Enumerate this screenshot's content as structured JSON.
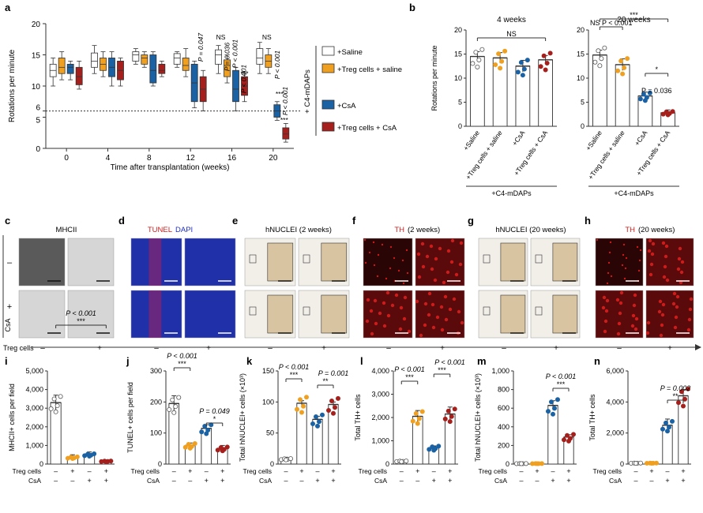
{
  "colors": {
    "saline": "#ffffff",
    "treg_saline": "#f0a020",
    "csa": "#1a62a3",
    "treg_csa": "#a5201c",
    "axis": "#333333"
  },
  "panel_letters": [
    "a",
    "b",
    "c",
    "d",
    "e",
    "f",
    "g",
    "h",
    "i",
    "j",
    "k",
    "l",
    "m",
    "n"
  ],
  "legend_a": {
    "items": [
      "+Saline",
      "+Treg cells + saline",
      "+CsA",
      "+Treg cells + CsA"
    ],
    "group_label": "+ C4-mDAPs"
  },
  "images_row": {
    "c": {
      "title": "MHCII"
    },
    "d": {
      "title_red": "TUNEL",
      "title_blue": "DAPI"
    },
    "e": {
      "title": "hNUCLEI (2 weeks)"
    },
    "f": {
      "title_red": "TH",
      "title_rest": "(2 weeks)"
    },
    "g": {
      "title": "hNUCLEI (20 weeks)"
    },
    "h": {
      "title_red": "TH",
      "title_rest": "(20 weeks)"
    },
    "row_minus": "–",
    "row_plus": "+",
    "row_label": "CsA",
    "col_label": "Treg cells",
    "col_minus": "–",
    "col_plus": "+"
  },
  "chart_data": [
    {
      "id": "a",
      "type": "box",
      "xlabel": "Time after transplantation (weeks)",
      "ylabel": "Rotations per minute",
      "ylim": [
        0,
        20
      ],
      "yticks": [
        0,
        5,
        6,
        10,
        15,
        20
      ],
      "categories": [
        "0",
        "4",
        "8",
        "12",
        "16",
        "20"
      ],
      "threshold": 6,
      "series": [
        {
          "color_key": "saline",
          "boxes": [
            [
              10,
              11.5,
              12.5,
              13.5,
              14.5
            ],
            [
              12,
              13,
              14,
              15.3,
              16.5
            ],
            [
              13.5,
              14,
              15,
              15.5,
              16
            ],
            [
              13,
              13.5,
              14.5,
              15.2,
              15.5
            ],
            [
              12,
              13.5,
              15,
              15.8,
              16.5
            ],
            [
              12,
              13.5,
              14.5,
              16,
              17
            ]
          ]
        },
        {
          "color_key": "treg_saline",
          "boxes": [
            [
              11,
              12,
              13,
              14.5,
              15.5
            ],
            [
              11.5,
              12.5,
              13.5,
              14.5,
              15.5
            ],
            [
              13,
              13.5,
              14.5,
              15,
              15.5
            ],
            [
              11.5,
              12.5,
              13.3,
              14.5,
              16
            ],
            [
              10.5,
              11.5,
              13.3,
              14.2,
              15
            ],
            [
              12,
              13,
              14,
              15,
              16
            ]
          ]
        },
        {
          "color_key": "csa",
          "boxes": [
            [
              11,
              12,
              13,
              13.5,
              14
            ],
            [
              10,
              11.5,
              13,
              14.5,
              15.5
            ],
            [
              10,
              10.5,
              12.5,
              15,
              15.5
            ],
            [
              6.5,
              7.5,
              10.5,
              13.5,
              14
            ],
            [
              6,
              7.5,
              9.5,
              12.5,
              13
            ],
            [
              4.5,
              5,
              6,
              7,
              7.5
            ]
          ]
        },
        {
          "color_key": "treg_csa",
          "boxes": [
            [
              9.5,
              10.2,
              11.5,
              13,
              14
            ],
            [
              10,
              11,
              12.5,
              14,
              14.5
            ],
            [
              11.5,
              12,
              12.5,
              13.5,
              14
            ],
            [
              6,
              7.5,
              9.5,
              11.5,
              12.5
            ],
            [
              7.5,
              8.5,
              10,
              11.5,
              12
            ],
            [
              1,
              1.5,
              2.3,
              3.3,
              4
            ]
          ]
        }
      ],
      "annotations": [
        {
          "cat": 3,
          "text": "P = 0.047"
        },
        {
          "cat": 4,
          "text": "NS"
        },
        {
          "cat": 4,
          "text": "P = 0.036"
        },
        {
          "cat": 4,
          "text": "P < 0.001"
        },
        {
          "cat": 4,
          "text": "P < 0.001"
        },
        {
          "cat": 4,
          "text": "***"
        },
        {
          "cat": 5,
          "text": "NS"
        },
        {
          "cat": 5,
          "text": "P < 0.001"
        },
        {
          "cat": 5,
          "text": "P < 0.001"
        },
        {
          "cat": 5,
          "text": "***"
        },
        {
          "cat": 5,
          "text": "***"
        }
      ]
    },
    {
      "id": "b1",
      "type": "bar",
      "title": "4 weeks",
      "ylabel": "Rotations per minute",
      "ylim": [
        0,
        20
      ],
      "yticks": [
        0,
        5,
        10,
        15,
        20
      ],
      "categories": [
        "+Saline",
        "+Treg cells + saline",
        "+CsA",
        "+Treg cells + CsA"
      ],
      "values": [
        14.5,
        14.2,
        12.5,
        13.8
      ],
      "errors": [
        1.0,
        1.1,
        1.2,
        0.9
      ],
      "group_label": "+C4-mDAPs",
      "brackets": [
        {
          "from": 0,
          "to": 3,
          "text": "NS"
        }
      ]
    },
    {
      "id": "b2",
      "type": "bar",
      "title": "20 weeks",
      "ylim": [
        0,
        20
      ],
      "yticks": [
        0,
        5,
        10,
        15,
        20
      ],
      "categories": [
        "+Saline",
        "+Treg cells + saline",
        "+CsA",
        "+Treg cells + CsA"
      ],
      "values": [
        14.8,
        12.8,
        6.3,
        2.8
      ],
      "errors": [
        1.0,
        1.2,
        0.8,
        0.6
      ],
      "group_label": "+C4-mDAPs",
      "brackets": [
        {
          "from": 0,
          "to": 3,
          "text": "***"
        },
        {
          "from": 0,
          "to": 1,
          "text": "NS   P < 0.001"
        },
        {
          "from": 2,
          "to": 3,
          "text": "*"
        },
        {
          "from": 2,
          "to": 3,
          "text": "P = 0.036"
        }
      ]
    },
    {
      "id": "i",
      "type": "bar",
      "ylabel": "MHCII+ cells per field",
      "ylim": [
        0,
        5000
      ],
      "yticks": [
        0,
        1000,
        2000,
        3000,
        4000,
        5000
      ],
      "yticklabels": [
        "0",
        "1,000",
        "2,000",
        "3,000",
        "4,000",
        "5,000"
      ],
      "treg": [
        "–",
        "+",
        "–",
        "+"
      ],
      "csa": [
        "–",
        "–",
        "+",
        "+"
      ],
      "values": [
        3300,
        350,
        500,
        150
      ],
      "errors": [
        400,
        150,
        150,
        50
      ],
      "brackets": [
        {
          "from": 0,
          "to": 3,
          "text": "***",
          "p": "P < 0.001"
        }
      ]
    },
    {
      "id": "j",
      "type": "bar",
      "ylabel": "TUNEL+ cells per field",
      "ylim": [
        0,
        300
      ],
      "yticks": [
        0,
        100,
        200,
        300
      ],
      "yticklabels": [
        "0",
        "100",
        "200",
        "300"
      ],
      "treg": [
        "–",
        "+",
        "–",
        "+"
      ],
      "csa": [
        "–",
        "–",
        "+",
        "+"
      ],
      "values": [
        195,
        60,
        115,
        50
      ],
      "errors": [
        25,
        8,
        12,
        10
      ],
      "brackets": [
        {
          "from": 0,
          "to": 1,
          "text": "***",
          "p": "P < 0.001"
        },
        {
          "from": 2,
          "to": 3,
          "text": "*",
          "p": "P = 0.049"
        }
      ]
    },
    {
      "id": "k",
      "type": "bar",
      "ylabel": "Total hNUCLEI+ cells (×10³)",
      "ylim": [
        0,
        150
      ],
      "yticks": [
        0,
        50,
        100,
        150
      ],
      "yticklabels": [
        "0",
        "50",
        "100",
        "150"
      ],
      "treg": [
        "–",
        "+",
        "–",
        "+"
      ],
      "csa": [
        "–",
        "–",
        "+",
        "+"
      ],
      "values": [
        8,
        98,
        72,
        96
      ],
      "errors": [
        3,
        4,
        5,
        4
      ],
      "brackets": [
        {
          "from": 0,
          "to": 1,
          "text": "***",
          "p": "P < 0.001"
        },
        {
          "from": 2,
          "to": 3,
          "text": "**",
          "p": "P = 0.001"
        }
      ]
    },
    {
      "id": "l",
      "type": "bar",
      "ylabel": "Total TH+ cells",
      "ylim": [
        0,
        4000
      ],
      "yticks": [
        0,
        1000,
        2000,
        3000,
        4000
      ],
      "yticklabels": [
        "0",
        "1,000",
        "2,000",
        "3,000",
        "4,000"
      ],
      "treg": [
        "–",
        "+",
        "–",
        "+"
      ],
      "csa": [
        "–",
        "–",
        "+",
        "+"
      ],
      "values": [
        120,
        2050,
        700,
        2150
      ],
      "errors": [
        50,
        250,
        80,
        300
      ],
      "brackets": [
        {
          "from": 0,
          "to": 1,
          "text": "***",
          "p": "P < 0.001"
        },
        {
          "from": 2,
          "to": 3,
          "text": "***",
          "p": "P < 0.001"
        }
      ]
    },
    {
      "id": "m",
      "type": "bar",
      "ylabel": "Total hNUCLEI+ cells (×10³)",
      "ylim": [
        0,
        1000
      ],
      "yticks": [
        0,
        200,
        400,
        600,
        800,
        1000
      ],
      "yticklabels": [
        "0",
        "200",
        "400",
        "600",
        "800",
        "1,000"
      ],
      "treg": [
        "–",
        "+",
        "–",
        "+"
      ],
      "csa": [
        "–",
        "–",
        "+",
        "+"
      ],
      "values": [
        5,
        5,
        630,
        290
      ],
      "errors": [
        2,
        2,
        50,
        25
      ],
      "brackets": [
        {
          "from": 2,
          "to": 3,
          "text": "***",
          "p": "P < 0.001"
        }
      ]
    },
    {
      "id": "n",
      "type": "bar",
      "ylabel": "Total TH+ cells",
      "ylim": [
        0,
        6000
      ],
      "yticks": [
        0,
        2000,
        4000,
        6000
      ],
      "yticklabels": [
        "0",
        "2,000",
        "4,000",
        "6,000"
      ],
      "treg": [
        "–",
        "+",
        "–",
        "+"
      ],
      "csa": [
        "–",
        "–",
        "+",
        "+"
      ],
      "values": [
        60,
        60,
        2500,
        4400
      ],
      "errors": [
        20,
        20,
        400,
        400
      ],
      "brackets": [
        {
          "from": 2,
          "to": 3,
          "text": "**",
          "p": "P = 0.002"
        }
      ]
    }
  ]
}
